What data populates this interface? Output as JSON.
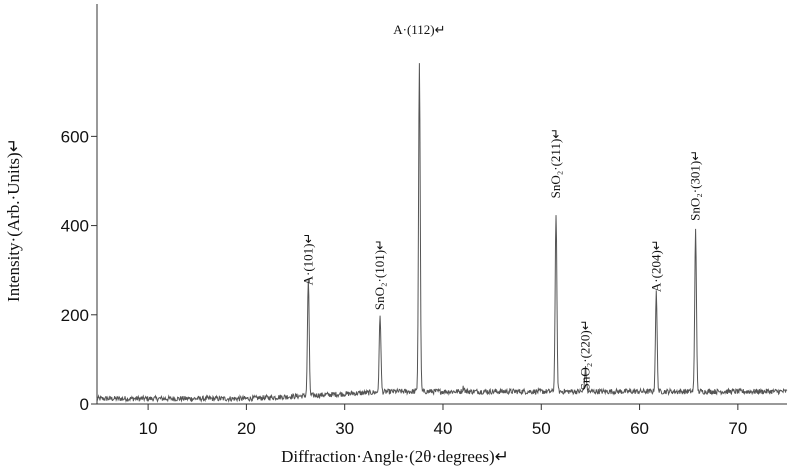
{
  "chart_data": {
    "type": "line",
    "title": "",
    "xlabel": "Diffraction·Angle·(2θ·degrees)↵",
    "ylabel": "Intensity·(Arb.·Units)↵",
    "xlim": [
      4.8,
      75
    ],
    "ylim": [
      0,
      760
    ],
    "x_ticks": [
      10,
      20,
      30,
      40,
      50,
      60,
      70
    ],
    "y_ticks": [
      0,
      200,
      400,
      600
    ],
    "grid": false,
    "baseline": 12,
    "series": [
      {
        "peaks": [
          {
            "x": 26.3,
            "y": 280
          },
          {
            "x": 33.6,
            "y": 200
          },
          {
            "x": 37.6,
            "y": 760
          },
          {
            "x": 42.1,
            "y": 38
          },
          {
            "x": 51.5,
            "y": 427
          },
          {
            "x": 54.5,
            "y": 80
          },
          {
            "x": 61.7,
            "y": 250
          },
          {
            "x": 65.7,
            "y": 393
          }
        ]
      }
    ],
    "annotations": [
      {
        "text": "A·(112)↵",
        "x": 37.6,
        "y": 830,
        "rotate": false
      },
      {
        "text": "A·(101)↵",
        "x": 26.3,
        "y": 325,
        "rotate": true
      },
      {
        "text": "SnO₂·(101)↵",
        "x": 33.6,
        "y": 290,
        "rotate": true
      },
      {
        "text": "SnO₂·(211)↵",
        "x": 51.5,
        "y": 540,
        "rotate": true
      },
      {
        "text": "SnO₂·(220)↵",
        "x": 54.5,
        "y": 110,
        "rotate": true
      },
      {
        "text": "A·(204)↵",
        "x": 61.7,
        "y": 310,
        "rotate": true
      },
      {
        "text": "SnO₂·(301)↵",
        "x": 65.7,
        "y": 490,
        "rotate": true
      }
    ],
    "line_color": "#555555",
    "axis_color": "#333333"
  }
}
